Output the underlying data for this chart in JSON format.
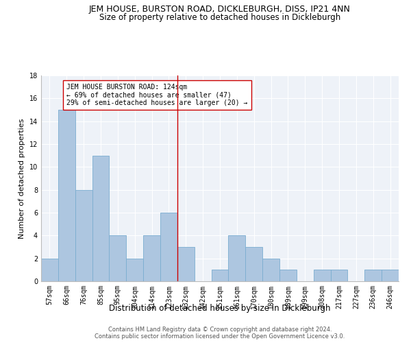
{
  "title": "JEM HOUSE, BURSTON ROAD, DICKLEBURGH, DISS, IP21 4NN",
  "subtitle": "Size of property relative to detached houses in Dickleburgh",
  "xlabel": "Distribution of detached houses by size in Dickleburgh",
  "ylabel": "Number of detached properties",
  "categories": [
    "57sqm",
    "66sqm",
    "76sqm",
    "85sqm",
    "95sqm",
    "104sqm",
    "114sqm",
    "123sqm",
    "132sqm",
    "142sqm",
    "151sqm",
    "161sqm",
    "170sqm",
    "180sqm",
    "189sqm",
    "199sqm",
    "208sqm",
    "217sqm",
    "227sqm",
    "236sqm",
    "246sqm"
  ],
  "values": [
    2,
    15,
    8,
    11,
    4,
    2,
    4,
    6,
    3,
    0,
    1,
    4,
    3,
    2,
    1,
    0,
    1,
    1,
    0,
    1,
    1
  ],
  "bar_color": "#adc6e0",
  "bar_edgecolor": "#7aadd0",
  "marker_index": 7.5,
  "marker_color": "#cc0000",
  "annotation_text": "JEM HOUSE BURSTON ROAD: 124sqm\n← 69% of detached houses are smaller (47)\n29% of semi-detached houses are larger (20) →",
  "annotation_box_color": "#ffffff",
  "annotation_box_edgecolor": "#cc0000",
  "ylim": [
    0,
    18
  ],
  "yticks": [
    0,
    2,
    4,
    6,
    8,
    10,
    12,
    14,
    16,
    18
  ],
  "background_color": "#eef2f8",
  "footer_line1": "Contains HM Land Registry data © Crown copyright and database right 2024.",
  "footer_line2": "Contains public sector information licensed under the Open Government Licence v3.0.",
  "title_fontsize": 9,
  "subtitle_fontsize": 8.5,
  "xlabel_fontsize": 8.5,
  "ylabel_fontsize": 8,
  "tick_fontsize": 7,
  "annotation_fontsize": 7,
  "footer_fontsize": 6
}
